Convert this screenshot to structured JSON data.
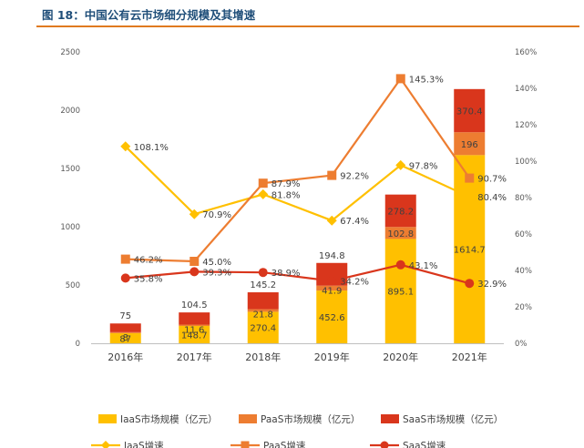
{
  "figure_title": "图 18：中国公有云市场细分规模及其增速",
  "colors": {
    "iaas": "#ffc000",
    "paas": "#ed7d31",
    "saas": "#d9361c",
    "iaas_line": "#ffc000",
    "paas_line": "#ed7d31",
    "saas_line": "#d9361c",
    "title": "#1f4e79",
    "rule": "#e07a1f"
  },
  "chart_data": {
    "type": "bar",
    "stacked": true,
    "title": "图 18：中国公有云市场细分规模及其增速",
    "categories": [
      "2016年",
      "2017年",
      "2018年",
      "2019年",
      "2020年",
      "2021年"
    ],
    "series": [
      {
        "name": "IaaS市场规模（亿元）",
        "kind": "bar",
        "axis": "left",
        "values": [
          87,
          148.7,
          270.4,
          452.6,
          895.1,
          1614.7
        ],
        "labels": [
          "87",
          "148.7",
          "270.4",
          "452.6",
          "895.1",
          "1614.7"
        ]
      },
      {
        "name": "PaaS市场规模（亿元）",
        "kind": "bar",
        "axis": "left",
        "values": [
          8,
          11.6,
          21.8,
          41.9,
          102.8,
          196
        ],
        "labels": [
          "8",
          "11.6",
          "21.8",
          "41.9",
          "102.8",
          "196"
        ]
      },
      {
        "name": "SaaS市场规模（亿元）",
        "kind": "bar",
        "axis": "left",
        "values": [
          75,
          104.5,
          145.2,
          194.8,
          278.2,
          370.4
        ],
        "labels": [
          "75",
          "104.5",
          "145.2",
          "194.8",
          "278.2",
          "370.4"
        ]
      },
      {
        "name": "IaaS增速",
        "kind": "line",
        "axis": "right",
        "marker": "diamond",
        "values": [
          108.1,
          70.9,
          81.8,
          67.4,
          97.8,
          80.4
        ],
        "labels": [
          "108.1%",
          "70.9%",
          "81.8%",
          "67.4%",
          "97.8%",
          "80.4%"
        ]
      },
      {
        "name": "PaaS增速",
        "kind": "line",
        "axis": "right",
        "marker": "square",
        "values": [
          46.2,
          45.0,
          87.9,
          92.2,
          145.3,
          90.7
        ],
        "labels": [
          "46.2%",
          "45.0%",
          "87.9%",
          "92.2%",
          "145.3%",
          "90.7%"
        ]
      },
      {
        "name": "SaaS增速",
        "kind": "line",
        "axis": "right",
        "marker": "circle",
        "values": [
          35.8,
          39.3,
          38.9,
          34.2,
          43.1,
          32.9
        ],
        "labels": [
          "35.8%",
          "39.3%",
          "38.9%",
          "34.2%",
          "43.1%",
          "32.9%"
        ]
      }
    ],
    "y_left": {
      "min": 0,
      "max": 2500,
      "ticks": [
        "0",
        "500",
        "1000",
        "1500",
        "2000",
        "2500"
      ]
    },
    "y_right": {
      "min": 0,
      "max": 160,
      "ticks": [
        "0%",
        "20%",
        "40%",
        "60%",
        "80%",
        "100%",
        "120%",
        "140%",
        "160%"
      ]
    },
    "grid": false,
    "legend_position": "bottom"
  }
}
